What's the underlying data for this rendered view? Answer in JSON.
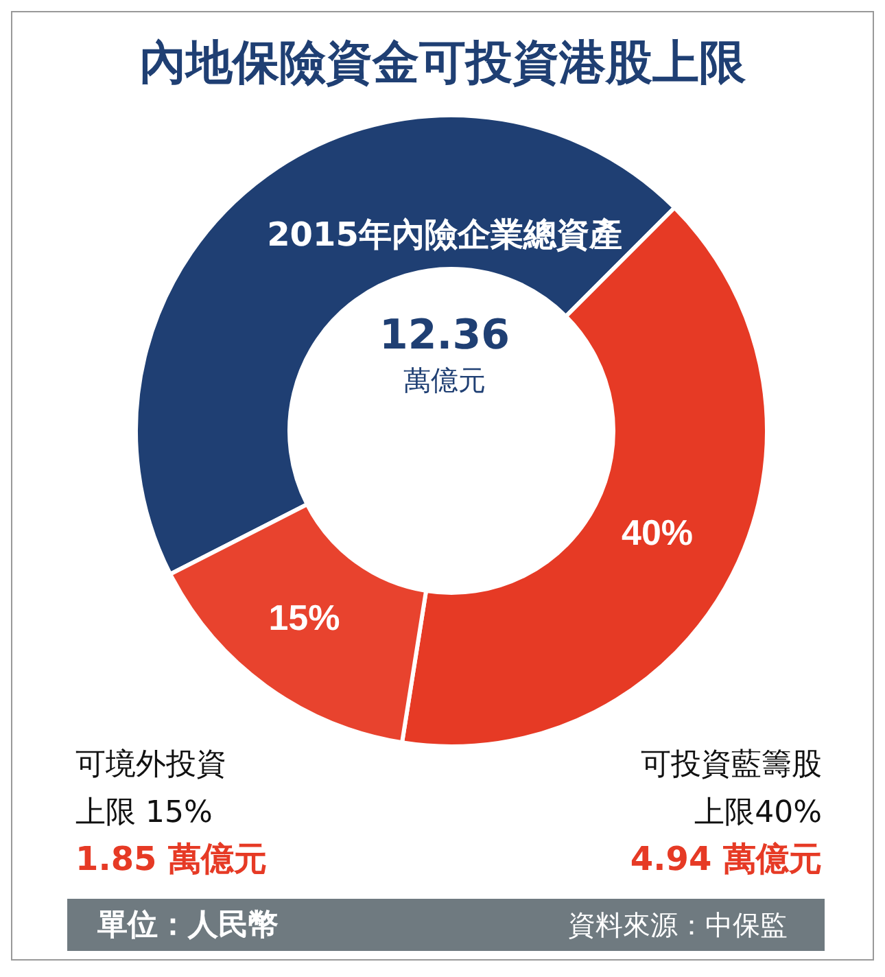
{
  "chart_data": {
    "type": "donut",
    "title": "內地保險資金可投資港股上限",
    "categories": [
      null,
      "可投資藍籌股",
      "可境外投資"
    ],
    "values": [
      45,
      40,
      15
    ],
    "colors": [
      "#1f3f73",
      "#e63a25",
      "#e8432e"
    ],
    "value_labels": [
      null,
      "40%",
      "15%"
    ],
    "legend": false,
    "annotations": [
      "2015年內險企業總資產",
      "12.36",
      "萬億元",
      "上限40%",
      "4.94 萬億元",
      "上限 15%",
      "1.85 萬億元",
      "單位：人民幣",
      "資料來源：中保監"
    ]
  }
}
